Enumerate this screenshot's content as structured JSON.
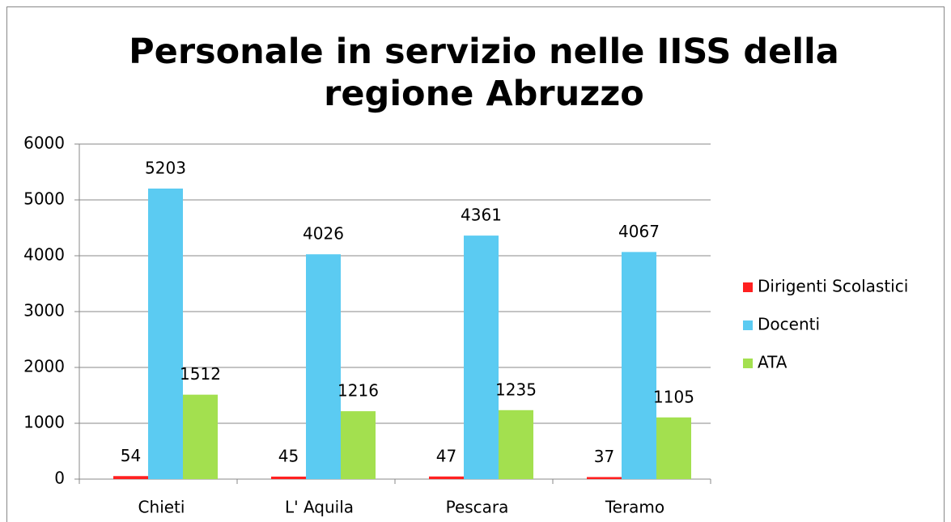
{
  "chart_data": {
    "type": "bar",
    "title": "Personale in servizio nelle IISS della regione Abruzzo",
    "categories": [
      "Chieti",
      "L' Aquila",
      "Pescara",
      "Teramo"
    ],
    "series": [
      {
        "name": "Dirigenti Scolastici",
        "color": "#ff2020",
        "values": [
          54,
          45,
          47,
          37
        ]
      },
      {
        "name": "Docenti",
        "color": "#5bcbf2",
        "values": [
          5203,
          4026,
          4361,
          4067
        ]
      },
      {
        "name": "ATA",
        "color": "#a3e04f",
        "values": [
          1512,
          1216,
          1235,
          1105
        ]
      }
    ],
    "ylim": [
      0,
      6000
    ],
    "yticks": [
      0,
      1000,
      2000,
      3000,
      4000,
      5000,
      6000
    ],
    "grid": true,
    "legend": "right"
  }
}
